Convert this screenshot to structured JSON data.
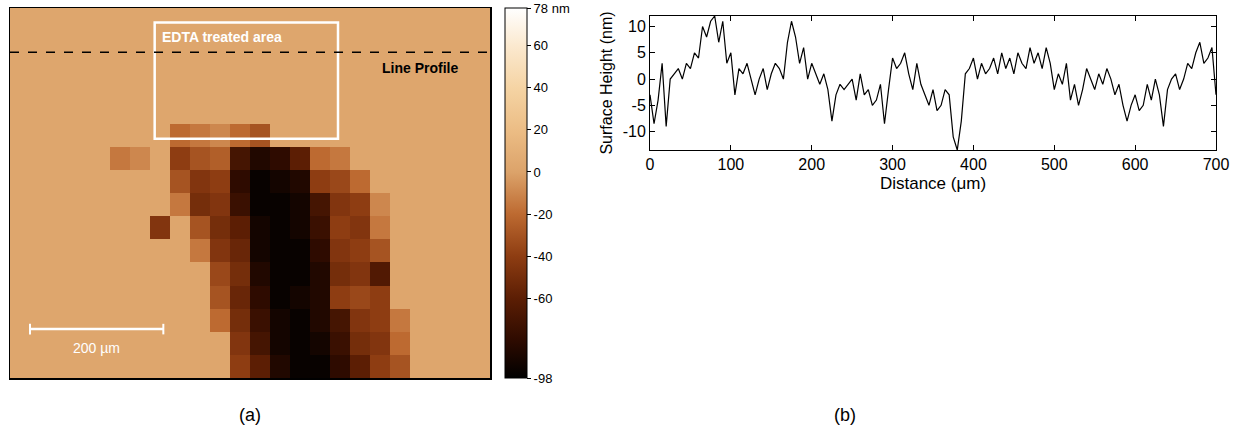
{
  "chart_data": [
    {
      "type": "heatmap",
      "label": "(a)",
      "x": [
        15,
        45,
        75,
        105,
        135,
        165,
        195,
        225,
        255,
        285,
        315,
        345,
        375,
        405,
        435,
        465,
        495,
        525,
        555,
        585,
        615,
        645,
        675,
        705
      ],
      "y": [
        17.5,
        52.5,
        87.5,
        122.5,
        157.5,
        192.5,
        227.5,
        262.5,
        297.5,
        332.5,
        367.5,
        402.5,
        437.5,
        472.5,
        507.5,
        542.5
      ],
      "z": [
        [
          2,
          2,
          2,
          2,
          2,
          2,
          2,
          2,
          2,
          2,
          2,
          2,
          2,
          2,
          2,
          2,
          2,
          2,
          2,
          2,
          2,
          2,
          2,
          2
        ],
        [
          2,
          2,
          2,
          2,
          2,
          2,
          2,
          2,
          2,
          2,
          2,
          2,
          2,
          2,
          2,
          2,
          2,
          2,
          2,
          2,
          2,
          2,
          2,
          2
        ],
        [
          2,
          2,
          2,
          2,
          2,
          2,
          2,
          2,
          2,
          2,
          2,
          2,
          2,
          2,
          2,
          2,
          2,
          2,
          2,
          2,
          2,
          2,
          2,
          2
        ],
        [
          2,
          2,
          2,
          2,
          2,
          2,
          2,
          2,
          2,
          2,
          2,
          2,
          2,
          2,
          2,
          2,
          2,
          2,
          2,
          2,
          2,
          2,
          2,
          2
        ],
        [
          2,
          2,
          2,
          2,
          2,
          2,
          2,
          2,
          2,
          2,
          2,
          2,
          2,
          2,
          2,
          2,
          2,
          2,
          2,
          2,
          2,
          2,
          2,
          2
        ],
        [
          2,
          2,
          2,
          2,
          2,
          2,
          2,
          2,
          -20,
          -15,
          -10,
          -20,
          -30,
          2,
          2,
          2,
          2,
          2,
          2,
          2,
          2,
          2,
          2,
          2
        ],
        [
          2,
          2,
          2,
          2,
          2,
          -15,
          -10,
          2,
          -40,
          -30,
          -25,
          -70,
          -85,
          -80,
          -60,
          -20,
          -15,
          2,
          2,
          2,
          2,
          2,
          2,
          2
        ],
        [
          2,
          2,
          2,
          2,
          2,
          2,
          2,
          2,
          -30,
          -45,
          -40,
          -80,
          -95,
          -90,
          -85,
          -40,
          -35,
          -20,
          2,
          2,
          2,
          2,
          2,
          2
        ],
        [
          2,
          2,
          2,
          2,
          2,
          2,
          2,
          2,
          -15,
          -50,
          -45,
          -75,
          -95,
          -95,
          -90,
          -70,
          -45,
          -40,
          -10,
          2,
          2,
          2,
          2,
          2
        ],
        [
          2,
          2,
          2,
          2,
          2,
          2,
          2,
          -45,
          2,
          -30,
          -50,
          -60,
          -90,
          -95,
          -90,
          -75,
          -40,
          -45,
          -15,
          2,
          2,
          2,
          2,
          2
        ],
        [
          2,
          2,
          2,
          2,
          2,
          2,
          2,
          2,
          2,
          -15,
          -45,
          -55,
          -90,
          -95,
          -95,
          -80,
          -45,
          -40,
          -30,
          2,
          2,
          2,
          2,
          2
        ],
        [
          2,
          2,
          2,
          2,
          2,
          2,
          2,
          2,
          2,
          2,
          -35,
          -50,
          -85,
          -95,
          -95,
          -85,
          -50,
          -45,
          -65,
          2,
          2,
          2,
          2,
          2
        ],
        [
          2,
          2,
          2,
          2,
          2,
          2,
          2,
          2,
          2,
          2,
          -30,
          -55,
          -80,
          -95,
          -90,
          -85,
          -40,
          -35,
          -40,
          2,
          2,
          2,
          2,
          2
        ],
        [
          2,
          2,
          2,
          2,
          2,
          2,
          2,
          2,
          2,
          2,
          -20,
          -50,
          -75,
          -90,
          -95,
          -85,
          -70,
          -45,
          -40,
          -15,
          2,
          2,
          2,
          2
        ],
        [
          2,
          2,
          2,
          2,
          2,
          2,
          2,
          2,
          2,
          2,
          2,
          -45,
          -70,
          -90,
          -95,
          -90,
          -75,
          -50,
          -45,
          -20,
          2,
          2,
          2,
          2
        ],
        [
          2,
          2,
          2,
          2,
          2,
          2,
          2,
          2,
          2,
          2,
          2,
          -40,
          -60,
          -85,
          -95,
          -95,
          -80,
          -60,
          -40,
          -30,
          2,
          2,
          2,
          2
        ]
      ],
      "zlim": [
        -98,
        78
      ],
      "zticks": [
        {
          "value": 78,
          "label": "78 nm"
        },
        60,
        40,
        20,
        0,
        -20,
        -40,
        -60,
        -98
      ],
      "xlim": [
        0,
        720
      ],
      "ylim": [
        0,
        560
      ],
      "tick_labels": false,
      "treated_area": {
        "label": "EDTA treated area",
        "x": [
          217,
          492
        ],
        "y": [
          22,
          198
        ]
      },
      "line_profile": {
        "label": "Line Profile",
        "y": 67
      },
      "scale_bar": {
        "label": "200 µm",
        "length": 200
      }
    },
    {
      "type": "line",
      "label": "(b)",
      "xlabel": "Distance (μm)",
      "ylabel": "Surface Height (nm)",
      "color": "#000000",
      "grid": false,
      "xlim": [
        0,
        700
      ],
      "ylim": [
        -13.5,
        12
      ],
      "xticks": [
        0,
        100,
        200,
        300,
        400,
        500,
        600,
        700
      ],
      "yticks": [
        -10,
        -5,
        0,
        5,
        10
      ],
      "x": [
        0,
        5,
        10,
        15,
        20,
        25,
        30,
        35,
        40,
        45,
        50,
        55,
        60,
        65,
        70,
        75,
        80,
        85,
        90,
        95,
        100,
        105,
        110,
        115,
        120,
        125,
        130,
        135,
        140,
        145,
        150,
        155,
        160,
        165,
        170,
        175,
        180,
        185,
        190,
        195,
        200,
        205,
        210,
        215,
        220,
        225,
        230,
        235,
        240,
        245,
        250,
        255,
        260,
        265,
        270,
        275,
        280,
        285,
        290,
        295,
        300,
        305,
        310,
        315,
        320,
        325,
        330,
        335,
        340,
        345,
        350,
        355,
        360,
        365,
        370,
        375,
        380,
        385,
        390,
        395,
        400,
        405,
        410,
        415,
        420,
        425,
        430,
        435,
        440,
        445,
        450,
        455,
        460,
        465,
        470,
        475,
        480,
        485,
        490,
        495,
        500,
        505,
        510,
        515,
        520,
        525,
        530,
        535,
        540,
        545,
        550,
        555,
        560,
        565,
        570,
        575,
        580,
        585,
        590,
        595,
        600,
        605,
        610,
        615,
        620,
        625,
        630,
        635,
        640,
        645,
        650,
        655,
        660,
        665,
        670,
        675,
        680,
        685,
        690,
        695,
        700
      ],
      "values": [
        -3,
        -8.5,
        -4,
        3,
        -9,
        0,
        1,
        2,
        0,
        3,
        2,
        5,
        4,
        10,
        8,
        11,
        12,
        7,
        11,
        3,
        5,
        -3,
        2,
        1,
        3,
        0,
        -3,
        0,
        2,
        -2,
        1,
        3,
        2,
        0,
        7,
        11,
        8,
        3,
        6,
        0,
        3,
        1,
        -1,
        1,
        -2,
        -8,
        -3,
        -1,
        -2,
        -1,
        0,
        -4,
        1,
        -3,
        -2,
        -5,
        -4,
        -1,
        -8.5,
        -2,
        4,
        2,
        3,
        5,
        1,
        -2,
        3,
        -1,
        -3,
        -5,
        -2,
        -6,
        -5,
        -2,
        -3,
        -11,
        -13.5,
        -8,
        1,
        2,
        4,
        0,
        3,
        1,
        2,
        4,
        1,
        5,
        2,
        4,
        1,
        5,
        3,
        2,
        6,
        3,
        5,
        2,
        6,
        3,
        -2,
        1,
        -1,
        3,
        -4,
        -1,
        -5,
        -2,
        2,
        0,
        -2,
        1,
        -1,
        2,
        0,
        -3,
        -1,
        -5,
        -8,
        -5,
        -3,
        -6,
        -5,
        -1,
        -4,
        0,
        -3,
        -9,
        -2,
        0,
        1,
        -2,
        0,
        3,
        2,
        5,
        7,
        3,
        4,
        6,
        -3
      ]
    }
  ]
}
